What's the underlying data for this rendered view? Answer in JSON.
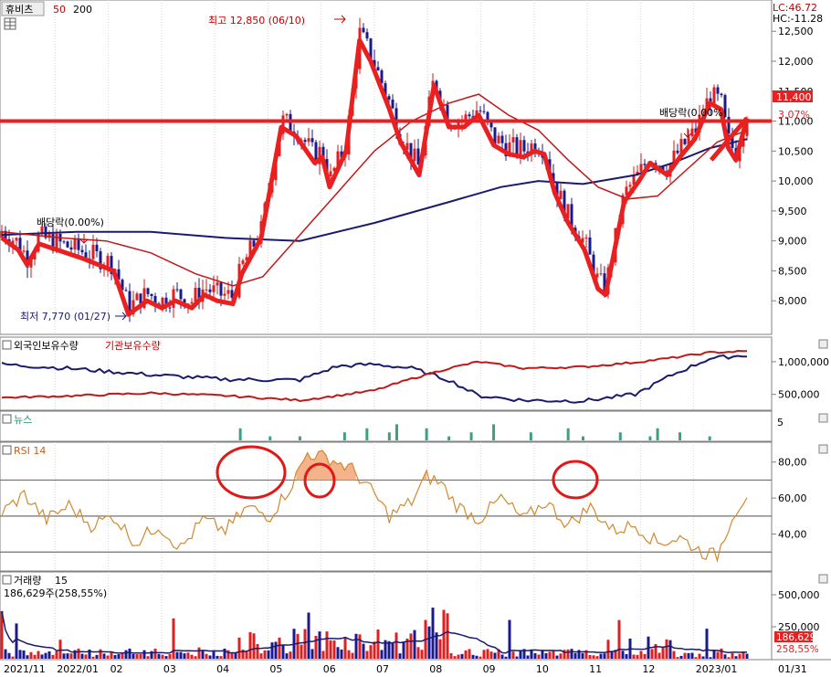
{
  "chart_data": {
    "type": "candlestick",
    "name": "휴비츠",
    "ma_periods": [
      "50",
      "200"
    ],
    "lc_label": "LC:46.72",
    "hc_label": "HC:-11.28",
    "price_axis": {
      "min": 7500,
      "max": 12900,
      "ticks": [
        8000,
        8500,
        9000,
        9500,
        10000,
        10500,
        11000,
        11500,
        12000,
        12500
      ],
      "tick_labels": [
        "8,000",
        "8,500",
        "9,000",
        "9,500",
        "10,000",
        "10,500",
        "11,000",
        "11,500",
        "12,000",
        "12,500"
      ]
    },
    "high_annotation": "최고 12,850 (06/10)",
    "low_annotation": "최저 7,770 (01/27)",
    "dividend_labels": [
      "배당락(0.00%)",
      "배당락(0.00%)"
    ],
    "current_price_label": "11,400",
    "current_change_label": "3.07%",
    "resistance_level": 11000,
    "price_path": [
      {
        "t": 0.0,
        "p": 9050
      },
      {
        "t": 0.022,
        "p": 8850
      },
      {
        "t": 0.034,
        "p": 8600
      },
      {
        "t": 0.05,
        "p": 8950
      },
      {
        "t": 0.11,
        "p": 8700
      },
      {
        "t": 0.15,
        "p": 8500
      },
      {
        "t": 0.17,
        "p": 7770
      },
      {
        "t": 0.195,
        "p": 8000
      },
      {
        "t": 0.215,
        "p": 7880
      },
      {
        "t": 0.233,
        "p": 8000
      },
      {
        "t": 0.255,
        "p": 7880
      },
      {
        "t": 0.272,
        "p": 8100
      },
      {
        "t": 0.289,
        "p": 8000
      },
      {
        "t": 0.31,
        "p": 7950
      },
      {
        "t": 0.322,
        "p": 8450
      },
      {
        "t": 0.348,
        "p": 9050
      },
      {
        "t": 0.362,
        "p": 10000
      },
      {
        "t": 0.375,
        "p": 10900
      },
      {
        "t": 0.395,
        "p": 10750
      },
      {
        "t": 0.42,
        "p": 10300
      },
      {
        "t": 0.43,
        "p": 10400
      },
      {
        "t": 0.44,
        "p": 9900
      },
      {
        "t": 0.462,
        "p": 10500
      },
      {
        "t": 0.48,
        "p": 12350
      },
      {
        "t": 0.495,
        "p": 12000
      },
      {
        "t": 0.52,
        "p": 11200
      },
      {
        "t": 0.535,
        "p": 10650
      },
      {
        "t": 0.56,
        "p": 10100
      },
      {
        "t": 0.58,
        "p": 11600
      },
      {
        "t": 0.6,
        "p": 10900
      },
      {
        "t": 0.62,
        "p": 10900
      },
      {
        "t": 0.64,
        "p": 11100
      },
      {
        "t": 0.66,
        "p": 10600
      },
      {
        "t": 0.68,
        "p": 10450
      },
      {
        "t": 0.7,
        "p": 10400
      },
      {
        "t": 0.715,
        "p": 10500
      },
      {
        "t": 0.728,
        "p": 10450
      },
      {
        "t": 0.742,
        "p": 9800
      },
      {
        "t": 0.76,
        "p": 9300
      },
      {
        "t": 0.782,
        "p": 8850
      },
      {
        "t": 0.8,
        "p": 8200
      },
      {
        "t": 0.81,
        "p": 8100
      },
      {
        "t": 0.82,
        "p": 8700
      },
      {
        "t": 0.835,
        "p": 9650
      },
      {
        "t": 0.855,
        "p": 10000
      },
      {
        "t": 0.87,
        "p": 10300
      },
      {
        "t": 0.893,
        "p": 10100
      },
      {
        "t": 0.91,
        "p": 10400
      },
      {
        "t": 0.93,
        "p": 10700
      },
      {
        "t": 0.95,
        "p": 11300
      },
      {
        "t": 0.965,
        "p": 11200
      },
      {
        "t": 0.975,
        "p": 10550
      },
      {
        "t": 0.985,
        "p": 10350
      },
      {
        "t": 1.0,
        "p": 11050
      }
    ],
    "ma50_path": [
      {
        "t": 0.0,
        "p": 9150
      },
      {
        "t": 0.08,
        "p": 9050
      },
      {
        "t": 0.14,
        "p": 9000
      },
      {
        "t": 0.2,
        "p": 8800
      },
      {
        "t": 0.26,
        "p": 8450
      },
      {
        "t": 0.31,
        "p": 8250
      },
      {
        "t": 0.35,
        "p": 8400
      },
      {
        "t": 0.4,
        "p": 9100
      },
      {
        "t": 0.45,
        "p": 9800
      },
      {
        "t": 0.5,
        "p": 10500
      },
      {
        "t": 0.55,
        "p": 11000
      },
      {
        "t": 0.6,
        "p": 11300
      },
      {
        "t": 0.64,
        "p": 11450
      },
      {
        "t": 0.68,
        "p": 11100
      },
      {
        "t": 0.72,
        "p": 10850
      },
      {
        "t": 0.76,
        "p": 10350
      },
      {
        "t": 0.8,
        "p": 9900
      },
      {
        "t": 0.84,
        "p": 9700
      },
      {
        "t": 0.88,
        "p": 9750
      },
      {
        "t": 0.92,
        "p": 10200
      },
      {
        "t": 0.96,
        "p": 10650
      },
      {
        "t": 1.0,
        "p": 10850
      }
    ],
    "ma200_path": [
      {
        "t": 0.0,
        "p": 9100
      },
      {
        "t": 0.1,
        "p": 9150
      },
      {
        "t": 0.2,
        "p": 9150
      },
      {
        "t": 0.3,
        "p": 9050
      },
      {
        "t": 0.4,
        "p": 9000
      },
      {
        "t": 0.5,
        "p": 9300
      },
      {
        "t": 0.6,
        "p": 9650
      },
      {
        "t": 0.67,
        "p": 9900
      },
      {
        "t": 0.72,
        "p": 10000
      },
      {
        "t": 0.78,
        "p": 9950
      },
      {
        "t": 0.85,
        "p": 10100
      },
      {
        "t": 0.9,
        "p": 10300
      },
      {
        "t": 0.95,
        "p": 10550
      },
      {
        "t": 1.0,
        "p": 10700
      }
    ],
    "holdings": {
      "foreign_label": "외국인보유수량",
      "institution_label": "기관보유수량",
      "axis_labels": [
        "1,000,000",
        "500,000"
      ],
      "axis_values": [
        1000000,
        500000
      ],
      "range": [
        300000,
        1250000
      ],
      "foreign_path": [
        {
          "t": 0.0,
          "p": 960000
        },
        {
          "t": 0.1,
          "p": 890000
        },
        {
          "t": 0.2,
          "p": 800000
        },
        {
          "t": 0.3,
          "p": 730000
        },
        {
          "t": 0.4,
          "p": 720000
        },
        {
          "t": 0.45,
          "p": 930000
        },
        {
          "t": 0.5,
          "p": 960000
        },
        {
          "t": 0.55,
          "p": 900000
        },
        {
          "t": 0.6,
          "p": 720000
        },
        {
          "t": 0.64,
          "p": 480000
        },
        {
          "t": 0.7,
          "p": 410000
        },
        {
          "t": 0.78,
          "p": 400000
        },
        {
          "t": 0.85,
          "p": 500000
        },
        {
          "t": 0.9,
          "p": 800000
        },
        {
          "t": 0.95,
          "p": 1050000
        },
        {
          "t": 1.0,
          "p": 1100000
        }
      ],
      "institution_path": [
        {
          "t": 0.0,
          "p": 450000
        },
        {
          "t": 0.1,
          "p": 480000
        },
        {
          "t": 0.2,
          "p": 520000
        },
        {
          "t": 0.3,
          "p": 480000
        },
        {
          "t": 0.4,
          "p": 410000
        },
        {
          "t": 0.45,
          "p": 480000
        },
        {
          "t": 0.5,
          "p": 560000
        },
        {
          "t": 0.55,
          "p": 740000
        },
        {
          "t": 0.6,
          "p": 900000
        },
        {
          "t": 0.64,
          "p": 1000000
        },
        {
          "t": 0.7,
          "p": 900000
        },
        {
          "t": 0.78,
          "p": 920000
        },
        {
          "t": 0.85,
          "p": 990000
        },
        {
          "t": 0.9,
          "p": 1060000
        },
        {
          "t": 0.95,
          "p": 1140000
        },
        {
          "t": 1.0,
          "p": 1160000
        }
      ]
    },
    "news": {
      "label": "뉴스",
      "axis_label": "5",
      "max": 5,
      "items": [
        {
          "t": 0.32,
          "c": 3
        },
        {
          "t": 0.36,
          "c": 1
        },
        {
          "t": 0.4,
          "c": 1
        },
        {
          "t": 0.46,
          "c": 2
        },
        {
          "t": 0.49,
          "c": 3
        },
        {
          "t": 0.52,
          "c": 2
        },
        {
          "t": 0.53,
          "c": 4
        },
        {
          "t": 0.57,
          "c": 3
        },
        {
          "t": 0.6,
          "c": 1
        },
        {
          "t": 0.63,
          "c": 2
        },
        {
          "t": 0.66,
          "c": 4
        },
        {
          "t": 0.71,
          "c": 2
        },
        {
          "t": 0.76,
          "c": 3
        },
        {
          "t": 0.78,
          "c": 1
        },
        {
          "t": 0.83,
          "c": 2
        },
        {
          "t": 0.87,
          "c": 1
        },
        {
          "t": 0.88,
          "c": 3
        },
        {
          "t": 0.91,
          "c": 2
        },
        {
          "t": 0.95,
          "c": 1
        }
      ]
    },
    "rsi": {
      "label": "RSI 14",
      "levels": [
        70,
        50,
        30
      ],
      "ticks": [
        80,
        60,
        40
      ],
      "tick_labels": [
        "80,00",
        "60,00",
        "40,00"
      ],
      "range": [
        20,
        90
      ],
      "path": [
        {
          "t": 0.0,
          "p": 52
        },
        {
          "t": 0.03,
          "p": 62
        },
        {
          "t": 0.06,
          "p": 48
        },
        {
          "t": 0.09,
          "p": 56
        },
        {
          "t": 0.12,
          "p": 45
        },
        {
          "t": 0.15,
          "p": 50
        },
        {
          "t": 0.18,
          "p": 35
        },
        {
          "t": 0.21,
          "p": 45
        },
        {
          "t": 0.24,
          "p": 32
        },
        {
          "t": 0.27,
          "p": 48
        },
        {
          "t": 0.3,
          "p": 42
        },
        {
          "t": 0.33,
          "p": 55
        },
        {
          "t": 0.36,
          "p": 50
        },
        {
          "t": 0.39,
          "p": 68
        },
        {
          "t": 0.41,
          "p": 85
        },
        {
          "t": 0.44,
          "p": 82
        },
        {
          "t": 0.47,
          "p": 76
        },
        {
          "t": 0.5,
          "p": 62
        },
        {
          "t": 0.52,
          "p": 50
        },
        {
          "t": 0.55,
          "p": 58
        },
        {
          "t": 0.57,
          "p": 72
        },
        {
          "t": 0.59,
          "p": 68
        },
        {
          "t": 0.61,
          "p": 56
        },
        {
          "t": 0.64,
          "p": 48
        },
        {
          "t": 0.67,
          "p": 60
        },
        {
          "t": 0.7,
          "p": 48
        },
        {
          "t": 0.73,
          "p": 58
        },
        {
          "t": 0.76,
          "p": 45
        },
        {
          "t": 0.79,
          "p": 55
        },
        {
          "t": 0.82,
          "p": 42
        },
        {
          "t": 0.85,
          "p": 45
        },
        {
          "t": 0.88,
          "p": 35
        },
        {
          "t": 0.91,
          "p": 38
        },
        {
          "t": 0.94,
          "p": 30
        },
        {
          "t": 0.96,
          "p": 28
        },
        {
          "t": 0.98,
          "p": 50
        },
        {
          "t": 1.0,
          "p": 62
        }
      ],
      "path2": [
        {
          "t": 0.0,
          "p": 60
        },
        {
          "t": 0.05,
          "p": 70
        },
        {
          "t": 0.1,
          "p": 68
        },
        {
          "t": 0.15,
          "p": 58
        },
        {
          "t": 0.2,
          "p": 64
        },
        {
          "t": 0.25,
          "p": 60
        },
        {
          "t": 0.3,
          "p": 66
        },
        {
          "t": 0.35,
          "p": 55
        },
        {
          "t": 0.4,
          "p": 48
        },
        {
          "t": 0.45,
          "p": 60
        },
        {
          "t": 0.5,
          "p": 55
        },
        {
          "t": 0.55,
          "p": 70
        },
        {
          "t": 0.6,
          "p": 66
        },
        {
          "t": 0.65,
          "p": 52
        },
        {
          "t": 0.7,
          "p": 40
        },
        {
          "t": 0.75,
          "p": 44
        },
        {
          "t": 0.8,
          "p": 35
        },
        {
          "t": 0.85,
          "p": 50
        },
        {
          "t": 0.9,
          "p": 60
        },
        {
          "t": 0.95,
          "p": 66
        },
        {
          "t": 1.0,
          "p": 62
        }
      ]
    },
    "volume": {
      "label": "거래량",
      "period": "15",
      "current_label": "186,629주(258,55%)",
      "axis_labels": [
        "500,000",
        "250,000"
      ],
      "axis_values": [
        500000,
        250000
      ],
      "max": 650000,
      "current_value_label": "186,629",
      "current_pct_label": "258,55%"
    },
    "x_labels": [
      "2021/11",
      "2022/01",
      "02",
      "03",
      "04",
      "05",
      "06",
      "07",
      "08",
      "09",
      "10",
      "11",
      "12",
      "2023/01",
      "01/31"
    ]
  }
}
